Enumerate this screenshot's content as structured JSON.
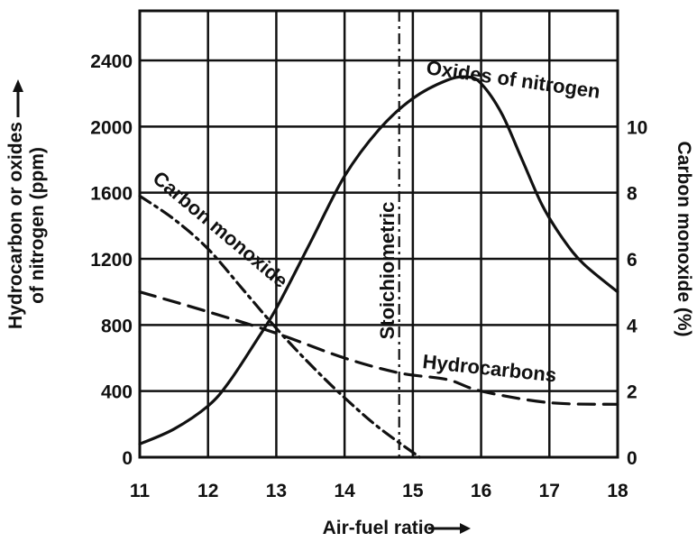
{
  "chart_data": {
    "type": "line",
    "xlabel": "Air-fuel ratio",
    "ylabel_left": [
      "Hydrocarbon or oxides",
      "of nitrogen (ppm)"
    ],
    "ylabel_right": "Carbon monoxide (%)",
    "xlim": [
      11,
      18
    ],
    "ylim_left": [
      0,
      2700
    ],
    "ylim_right": [
      0,
      13.5
    ],
    "x_ticks": [
      "11",
      "12",
      "13",
      "14",
      "15",
      "16",
      "17",
      "18"
    ],
    "y_left_ticks": [
      "0",
      "400",
      "800",
      "1200",
      "1600",
      "2000",
      "2400"
    ],
    "y_right_ticks": [
      "0",
      "2",
      "4",
      "6",
      "8",
      "10"
    ],
    "grid": true,
    "stoichiometric": {
      "label": "Stoichiometric",
      "x": 14.8
    },
    "series": [
      {
        "name": "Oxides of nitrogen",
        "axis": "left",
        "style": "solid",
        "x": [
          11,
          11.5,
          12,
          12.3,
          12.7,
          13,
          13.5,
          14,
          14.5,
          15,
          15.5,
          15.8,
          16,
          16.3,
          16.6,
          16.9,
          17.2,
          17.5,
          18
        ],
        "y": [
          80,
          170,
          310,
          450,
          700,
          900,
          1300,
          1700,
          1980,
          2170,
          2280,
          2300,
          2260,
          2080,
          1800,
          1520,
          1320,
          1170,
          1000
        ]
      },
      {
        "name": "Carbon monoxide",
        "axis": "right",
        "style": "dash-dot",
        "x": [
          11,
          11.5,
          12,
          12.5,
          13,
          13.5,
          14,
          14.5,
          15.1
        ],
        "y": [
          7.9,
          7.2,
          6.3,
          5.1,
          3.9,
          2.8,
          1.8,
          0.9,
          0
        ]
      },
      {
        "name": "Hydrocarbons",
        "axis": "left",
        "style": "dashed",
        "x": [
          11,
          12,
          13,
          14,
          14.8,
          15.5,
          16,
          17,
          18
        ],
        "y": [
          1000,
          880,
          750,
          600,
          510,
          470,
          400,
          330,
          320
        ]
      }
    ]
  }
}
